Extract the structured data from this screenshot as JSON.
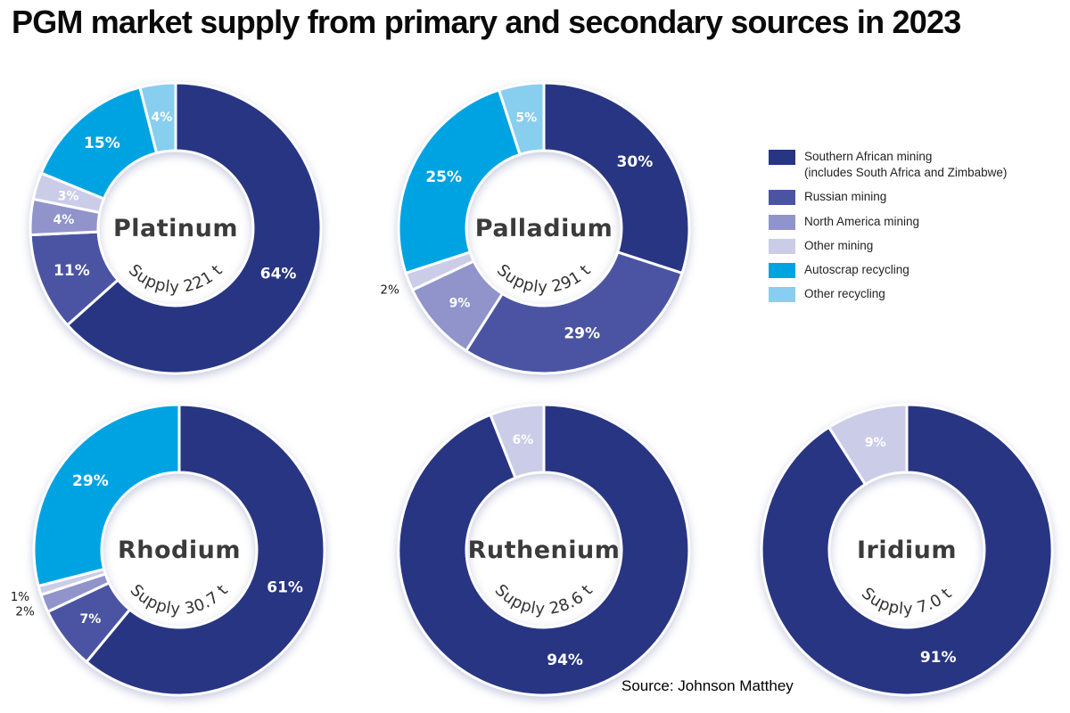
{
  "title": "PGM market supply from primary and secondary sources in 2023",
  "source_credit": "Source: Johnson Matthey",
  "legend": {
    "items": [
      {
        "label": "Southern African mining",
        "sublabel": "(includes South Africa and Zimbabwe)",
        "color": "#283582"
      },
      {
        "label": "Russian mining",
        "sublabel": "",
        "color": "#4B54A2"
      },
      {
        "label": "North America mining",
        "sublabel": "",
        "color": "#9094CB"
      },
      {
        "label": "Other mining",
        "sublabel": "",
        "color": "#CBCCE8"
      },
      {
        "label": "Autoscrap recycling",
        "sublabel": "",
        "color": "#00A3E2"
      },
      {
        "label": "Other recycling",
        "sublabel": "",
        "color": "#87CEEF"
      }
    ]
  },
  "chart_data": [
    {
      "type": "pie",
      "title": "Platinum",
      "subtitle": "Supply 221 t",
      "unit": "%",
      "categories": [
        "Southern African mining",
        "Russian mining",
        "North America mining",
        "Other mining",
        "Autoscrap recycling",
        "Other recycling"
      ],
      "values": [
        64,
        11,
        4,
        3,
        15,
        4
      ]
    },
    {
      "type": "pie",
      "title": "Palladium",
      "subtitle": "Supply 291 t",
      "unit": "%",
      "categories": [
        "Southern African mining",
        "Russian mining",
        "North America mining",
        "Other mining",
        "Autoscrap recycling",
        "Other recycling"
      ],
      "values": [
        30,
        29,
        9,
        2,
        25,
        5
      ]
    },
    {
      "type": "pie",
      "title": "Rhodium",
      "subtitle": "Supply 30.7 t",
      "unit": "%",
      "categories": [
        "Southern African mining",
        "Russian mining",
        "North America mining",
        "Other mining",
        "Autoscrap recycling"
      ],
      "values": [
        61,
        7,
        2,
        1,
        29
      ]
    },
    {
      "type": "pie",
      "title": "Ruthenium",
      "subtitle": "Supply 28.6 t",
      "unit": "%",
      "categories": [
        "Southern African mining",
        "Other mining"
      ],
      "values": [
        94,
        6
      ]
    },
    {
      "type": "pie",
      "title": "Iridium",
      "subtitle": "Supply 7.0 t",
      "unit": "%",
      "categories": [
        "Southern African mining",
        "Other mining"
      ],
      "values": [
        91,
        9
      ]
    }
  ]
}
